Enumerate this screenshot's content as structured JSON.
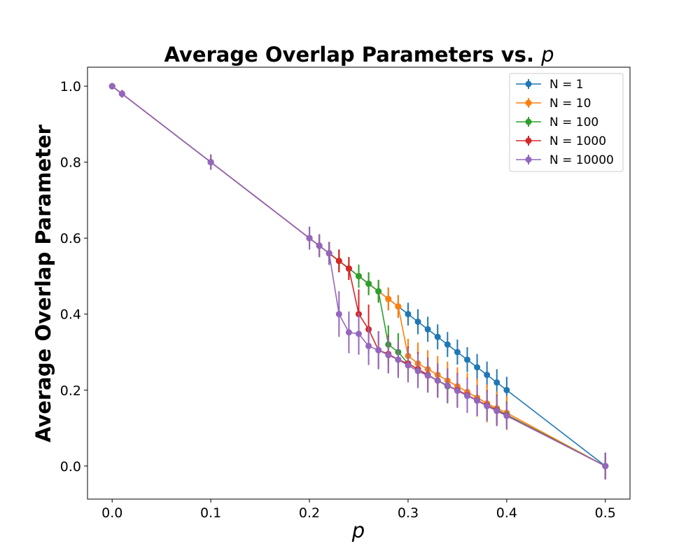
{
  "chart_data": {
    "type": "line",
    "title": "Average Overlap Parameters vs. ",
    "title_var": "p",
    "xlabel": "p",
    "ylabel": "Average Overlap Parameter",
    "xlim": [
      -0.025,
      0.525
    ],
    "ylim": [
      -0.087,
      1.05
    ],
    "xticks": [
      0.0,
      0.1,
      0.2,
      0.3,
      0.4,
      0.5
    ],
    "xtick_labels": [
      "0.0",
      "0.1",
      "0.2",
      "0.3",
      "0.4",
      "0.5"
    ],
    "yticks": [
      0.0,
      0.2,
      0.4,
      0.6,
      0.8,
      1.0
    ],
    "ytick_labels": [
      "0.0",
      "0.2",
      "0.4",
      "0.6",
      "0.8",
      "1.0"
    ],
    "legend_position": "top-right",
    "series": [
      {
        "name": "N = 1",
        "color": "#1f77b4",
        "x": [
          0,
          0.01,
          0.1,
          0.2,
          0.21,
          0.22,
          0.23,
          0.24,
          0.25,
          0.26,
          0.27,
          0.28,
          0.29,
          0.3,
          0.31,
          0.32,
          0.33,
          0.34,
          0.35,
          0.36,
          0.37,
          0.38,
          0.39,
          0.4,
          0.5
        ],
        "y": [
          1.0,
          0.98,
          0.8,
          0.6,
          0.58,
          0.56,
          0.54,
          0.52,
          0.5,
          0.48,
          0.46,
          0.44,
          0.42,
          0.4,
          0.38,
          0.36,
          0.34,
          0.32,
          0.3,
          0.28,
          0.26,
          0.24,
          0.22,
          0.2,
          0.0
        ],
        "err": [
          0.0,
          0.01,
          0.02,
          0.03,
          0.03,
          0.03,
          0.03,
          0.03,
          0.03,
          0.03,
          0.03,
          0.03,
          0.03,
          0.03,
          0.033,
          0.033,
          0.033,
          0.033,
          0.033,
          0.033,
          0.035,
          0.035,
          0.035,
          0.035,
          0.035
        ]
      },
      {
        "name": "N = 10",
        "color": "#ff7f0e",
        "x": [
          0,
          0.01,
          0.1,
          0.2,
          0.21,
          0.22,
          0.23,
          0.24,
          0.25,
          0.26,
          0.27,
          0.28,
          0.29,
          0.3,
          0.31,
          0.32,
          0.33,
          0.34,
          0.35,
          0.36,
          0.37,
          0.38,
          0.39,
          0.4,
          0.5
        ],
        "y": [
          1.0,
          0.98,
          0.8,
          0.6,
          0.58,
          0.56,
          0.54,
          0.52,
          0.5,
          0.48,
          0.46,
          0.44,
          0.42,
          0.29,
          0.27,
          0.255,
          0.24,
          0.225,
          0.21,
          0.195,
          0.18,
          0.165,
          0.152,
          0.14,
          0.0
        ],
        "err": [
          0.0,
          0.01,
          0.02,
          0.03,
          0.03,
          0.03,
          0.03,
          0.03,
          0.03,
          0.03,
          0.03,
          0.03,
          0.03,
          0.045,
          0.055,
          0.05,
          0.05,
          0.05,
          0.05,
          0.05,
          0.05,
          0.05,
          0.045,
          0.045,
          0.035
        ]
      },
      {
        "name": "N = 100",
        "color": "#2ca02c",
        "x": [
          0,
          0.01,
          0.1,
          0.2,
          0.21,
          0.22,
          0.23,
          0.24,
          0.25,
          0.26,
          0.27,
          0.28,
          0.29,
          0.3,
          0.31,
          0.32,
          0.33,
          0.34,
          0.35,
          0.36,
          0.37,
          0.38,
          0.39,
          0.4,
          0.5
        ],
        "y": [
          1.0,
          0.98,
          0.8,
          0.6,
          0.58,
          0.56,
          0.54,
          0.52,
          0.5,
          0.48,
          0.46,
          0.32,
          0.3,
          0.27,
          0.255,
          0.24,
          0.225,
          0.21,
          0.2,
          0.185,
          0.173,
          0.16,
          0.148,
          0.135,
          0.0
        ],
        "err": [
          0.0,
          0.01,
          0.02,
          0.03,
          0.03,
          0.03,
          0.03,
          0.03,
          0.03,
          0.03,
          0.03,
          0.05,
          0.05,
          0.045,
          0.045,
          0.045,
          0.045,
          0.045,
          0.045,
          0.045,
          0.04,
          0.04,
          0.04,
          0.035,
          0.035
        ]
      },
      {
        "name": "N = 1000",
        "color": "#d62728",
        "x": [
          0,
          0.01,
          0.1,
          0.2,
          0.21,
          0.22,
          0.23,
          0.24,
          0.25,
          0.26,
          0.27,
          0.28,
          0.29,
          0.3,
          0.31,
          0.32,
          0.33,
          0.34,
          0.35,
          0.36,
          0.37,
          0.38,
          0.39,
          0.4,
          0.5
        ],
        "y": [
          1.0,
          0.98,
          0.8,
          0.6,
          0.58,
          0.56,
          0.54,
          0.52,
          0.4,
          0.36,
          0.305,
          0.295,
          0.28,
          0.27,
          0.255,
          0.24,
          0.225,
          0.212,
          0.2,
          0.187,
          0.173,
          0.16,
          0.147,
          0.133,
          0.0
        ],
        "err": [
          0.0,
          0.01,
          0.02,
          0.03,
          0.03,
          0.03,
          0.03,
          0.03,
          0.065,
          0.065,
          0.05,
          0.05,
          0.045,
          0.045,
          0.045,
          0.045,
          0.045,
          0.045,
          0.045,
          0.045,
          0.04,
          0.04,
          0.04,
          0.035,
          0.035
        ]
      },
      {
        "name": "N = 10000",
        "color": "#9467bd",
        "x": [
          0,
          0.01,
          0.1,
          0.2,
          0.21,
          0.22,
          0.23,
          0.24,
          0.25,
          0.26,
          0.27,
          0.28,
          0.29,
          0.3,
          0.31,
          0.32,
          0.33,
          0.34,
          0.35,
          0.36,
          0.37,
          0.38,
          0.39,
          0.4,
          0.5
        ],
        "y": [
          1.0,
          0.98,
          0.8,
          0.6,
          0.58,
          0.56,
          0.4,
          0.352,
          0.348,
          0.316,
          0.305,
          0.292,
          0.28,
          0.265,
          0.25,
          0.238,
          0.225,
          0.212,
          0.198,
          0.185,
          0.172,
          0.158,
          0.145,
          0.132,
          0.0
        ],
        "err": [
          0.0,
          0.01,
          0.02,
          0.03,
          0.03,
          0.03,
          0.06,
          0.055,
          0.055,
          0.05,
          0.05,
          0.048,
          0.048,
          0.045,
          0.045,
          0.045,
          0.045,
          0.045,
          0.045,
          0.045,
          0.04,
          0.04,
          0.04,
          0.035,
          0.035
        ]
      }
    ]
  }
}
